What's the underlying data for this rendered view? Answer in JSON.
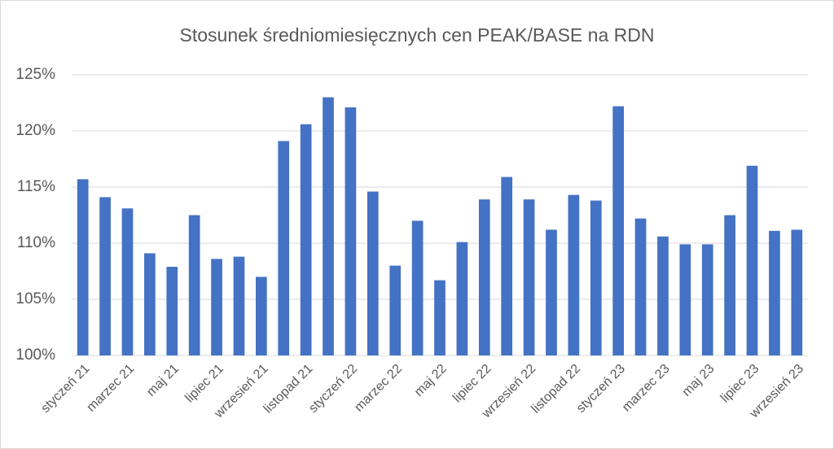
{
  "chart_data": {
    "type": "bar",
    "title": "Stosunek średniomiesięcznych cen PEAK/BASE na RDN",
    "categories": [
      "styczeń 21",
      null,
      "marzec 21",
      null,
      "maj 21",
      null,
      "lipiec 21",
      null,
      "wrzesień 21",
      null,
      "listopad 21",
      null,
      "styczeń 22",
      null,
      "marzec 22",
      null,
      "maj 22",
      null,
      "lipiec 22",
      null,
      "wrzesień 22",
      null,
      "listopad 22",
      null,
      "styczeń 23",
      null,
      "marzec 23",
      null,
      "maj 23",
      null,
      "lipiec 23",
      null,
      "wrzesień 23"
    ],
    "values": [
      115.7,
      114.1,
      113.1,
      109.1,
      107.9,
      112.5,
      108.6,
      108.8,
      107.0,
      119.1,
      120.6,
      123.0,
      122.1,
      114.6,
      108.0,
      112.0,
      106.7,
      110.1,
      113.9,
      115.9,
      113.9,
      111.2,
      114.3,
      113.8,
      122.2,
      112.2,
      110.6,
      109.9,
      109.9,
      112.5,
      116.9,
      111.1,
      111.2
    ],
    "color": "#4472c4",
    "ylim": [
      100,
      125
    ],
    "yticks": [
      {
        "value": 100,
        "label": "100%"
      },
      {
        "value": 105,
        "label": "105%"
      },
      {
        "value": 110,
        "label": "110%"
      },
      {
        "value": 115,
        "label": "115%"
      },
      {
        "value": 120,
        "label": "120%"
      },
      {
        "value": 125,
        "label": "125%"
      }
    ],
    "grid": true
  }
}
